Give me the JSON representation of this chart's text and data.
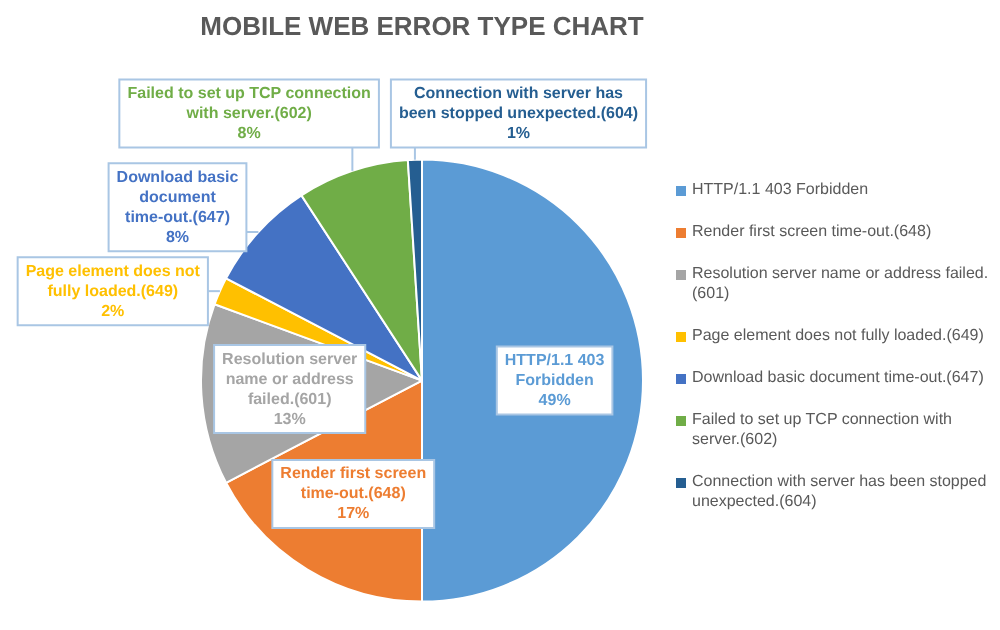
{
  "chart_data": {
    "type": "pie",
    "title": "MOBILE WEB ERROR TYPE CHART",
    "categories": [
      "HTTP/1.1 403 Forbidden",
      "Render first screen time-out.(648)",
      "Resolution server name or address failed.(601)",
      "Page element does not fully loaded.(649)",
      "Download basic document time-out.(647)",
      "Failed to set up TCP connection with server.(602)",
      "Connection with server has been stopped unexpected.(604)"
    ],
    "values": [
      49,
      17,
      13,
      2,
      8,
      8,
      1
    ],
    "value_labels": [
      "49%",
      "17%",
      "13%",
      "2%",
      "8%",
      "8%",
      "1%"
    ],
    "colors": [
      "#5b9bd5",
      "#ed7d31",
      "#a5a5a5",
      "#ffc000",
      "#4472c4",
      "#70ad47",
      "#255e91"
    ],
    "legend": "right"
  }
}
